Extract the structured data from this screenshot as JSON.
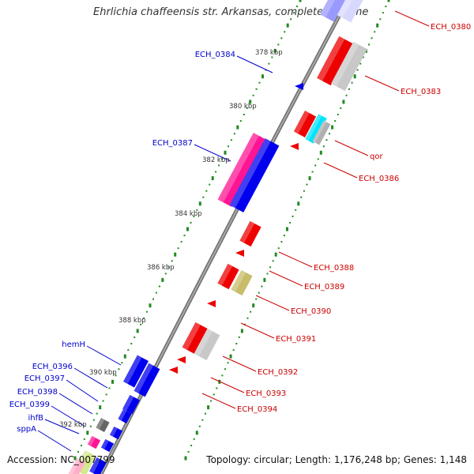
{
  "title": "Ehrlichia chaffeensis str. Arkansas, complete genome",
  "accession": {
    "label": "Accession:",
    "value": "NC_007799"
  },
  "topology": {
    "label": "Topology:",
    "value": "circular;",
    "length_label": "Length:",
    "length_value": "1,176,248 bp;",
    "genes_label": "Genes:",
    "genes_value": "1,148"
  },
  "colors": {
    "backbone": "#888888",
    "gc_ticks": "#228b22",
    "left_labels": "#0000cc",
    "right_labels": "#cc0000"
  },
  "kbp_labels": [
    {
      "id": "378",
      "text": "378 kbp"
    },
    {
      "id": "380",
      "text": "380 kbp"
    },
    {
      "id": "382",
      "text": "382 kbp"
    },
    {
      "id": "384",
      "text": "384 kbp"
    },
    {
      "id": "386",
      "text": "386 kbp"
    },
    {
      "id": "388",
      "text": "388 kbp"
    },
    {
      "id": "390",
      "text": "390 kbp"
    },
    {
      "id": "392",
      "text": "392 kbp"
    }
  ],
  "genes": [
    {
      "id": "ECH_0380",
      "label": "ECH_0380",
      "strand": "+",
      "color": "#e60000"
    },
    {
      "id": "ECH_0383",
      "label": "ECH_0383",
      "strand": "+",
      "color": "#e60000"
    },
    {
      "id": "qor",
      "label": "qor",
      "strand": "+",
      "color": "#e60000"
    },
    {
      "id": "ECH_0386",
      "label": "ECH_0386",
      "strand": "+",
      "color": "#e60000"
    },
    {
      "id": "ECH_0388",
      "label": "ECH_0388",
      "strand": "+",
      "color": "#e60000"
    },
    {
      "id": "ECH_0389",
      "label": "ECH_0389",
      "strand": "+",
      "color": "#e60000"
    },
    {
      "id": "ECH_0390",
      "label": "ECH_0390",
      "strand": "+",
      "color": "#e60000"
    },
    {
      "id": "ECH_0391",
      "label": "ECH_0391",
      "strand": "+",
      "color": "#e60000"
    },
    {
      "id": "ECH_0392",
      "label": "ECH_0392",
      "strand": "+",
      "color": "#e60000"
    },
    {
      "id": "ECH_0393",
      "label": "ECH_0393",
      "strand": "+",
      "color": "#e60000"
    },
    {
      "id": "ECH_0394",
      "label": "ECH_0394",
      "strand": "+",
      "color": "#e60000"
    },
    {
      "id": "ECH_0384",
      "label": "ECH_0384",
      "strand": "-",
      "color": "#0000ee"
    },
    {
      "id": "ECH_0387",
      "label": "ECH_0387",
      "strand": "-",
      "color": "#0000ee"
    },
    {
      "id": "hemH",
      "label": "hemH",
      "strand": "-",
      "color": "#0000ee"
    },
    {
      "id": "ECH_0396",
      "label": "ECH_0396",
      "strand": "-",
      "color": "#0000ee"
    },
    {
      "id": "ECH_0397",
      "label": "ECH_0397",
      "strand": "-",
      "color": "#0000ee"
    },
    {
      "id": "ECH_0398",
      "label": "ECH_0398",
      "strand": "-",
      "color": "#0000ee"
    },
    {
      "id": "ECH_0399",
      "label": "ECH_0399",
      "strand": "-",
      "color": "#0000ee"
    },
    {
      "id": "ihfB",
      "label": "ihfB",
      "strand": "-",
      "color": "#0000ee"
    },
    {
      "id": "sppA",
      "label": "sppA",
      "strand": "-",
      "color": "#0000ee"
    }
  ]
}
